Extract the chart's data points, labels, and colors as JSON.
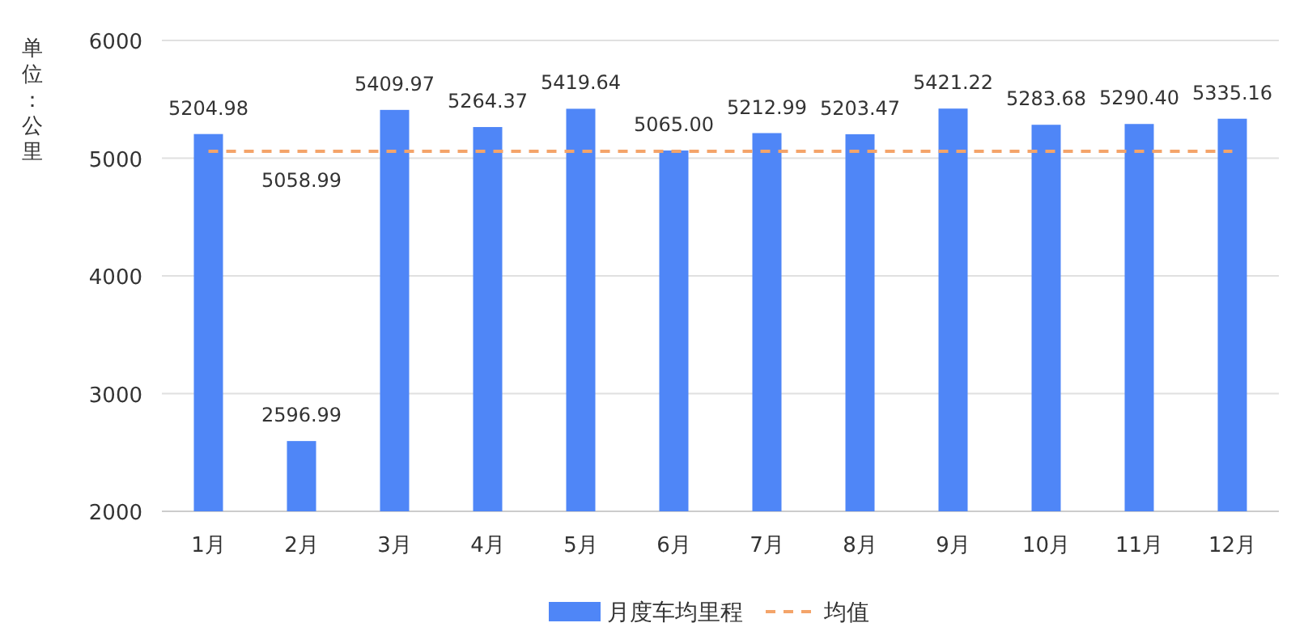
{
  "chart_data": {
    "type": "bar",
    "ylabel": "单位：公里",
    "categories": [
      "1月",
      "2月",
      "3月",
      "4月",
      "5月",
      "6月",
      "7月",
      "8月",
      "9月",
      "10月",
      "11月",
      "12月"
    ],
    "series": [
      {
        "name": "月度车均里程",
        "color": "#4f86f7",
        "values": [
          5204.98,
          2596.99,
          5409.97,
          5264.37,
          5419.64,
          5065.0,
          5212.99,
          5203.47,
          5421.22,
          5283.68,
          5290.4,
          5335.16
        ],
        "value_labels": [
          "5204.98",
          "2596.99",
          "5409.97",
          "5264.37",
          "5419.64",
          "5065.00",
          "5212.99",
          "5203.47",
          "5421.22",
          "5283.68",
          "5290.40",
          "5335.16"
        ]
      },
      {
        "name": "均值",
        "type": "line",
        "color": "#f4a46a",
        "line_style": "dashed",
        "marker": "none",
        "values": [
          5058.99,
          5058.99,
          5058.99,
          5058.99,
          5058.99,
          5058.99,
          5058.99,
          5058.99,
          5058.99,
          5058.99,
          5058.99,
          5058.99
        ],
        "value_labels": [
          null,
          "5058.99",
          null,
          null,
          null,
          null,
          null,
          null,
          null,
          null,
          null,
          null
        ]
      }
    ],
    "ylim": [
      2000,
      6000
    ],
    "yticks": [
      2000,
      3000,
      4000,
      5000,
      6000
    ],
    "grid": "y",
    "legend": "bottom"
  }
}
